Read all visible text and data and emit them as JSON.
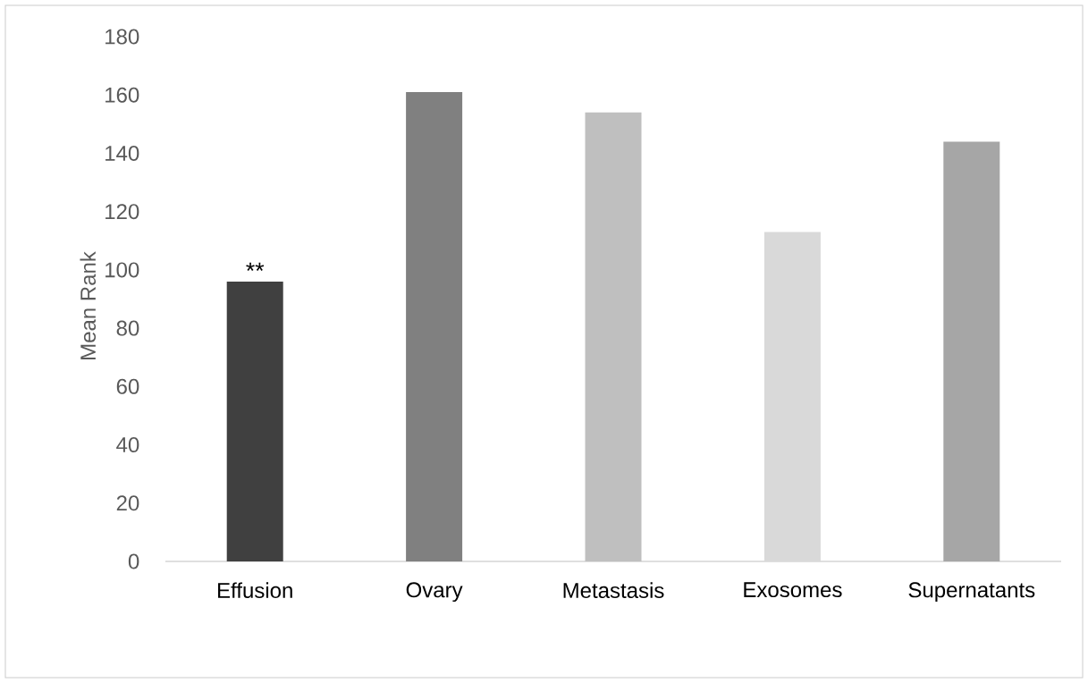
{
  "chart_data": {
    "type": "bar",
    "ylabel": "Mean Rank",
    "categories": [
      "Effusion",
      "Ovary",
      "Metastasis",
      "Exosomes",
      "Supernatants"
    ],
    "values": [
      96,
      161,
      154,
      113,
      144
    ],
    "colors": [
      "#404040",
      "#808080",
      "#bfbfbf",
      "#d9d9d9",
      "#a6a6a6"
    ],
    "ylim": [
      0,
      180
    ],
    "yticks": [
      0,
      20,
      40,
      60,
      80,
      100,
      120,
      140,
      160,
      180
    ],
    "annotations": [
      {
        "text": "**",
        "x": "Effusion",
        "y": 96
      }
    ]
  }
}
